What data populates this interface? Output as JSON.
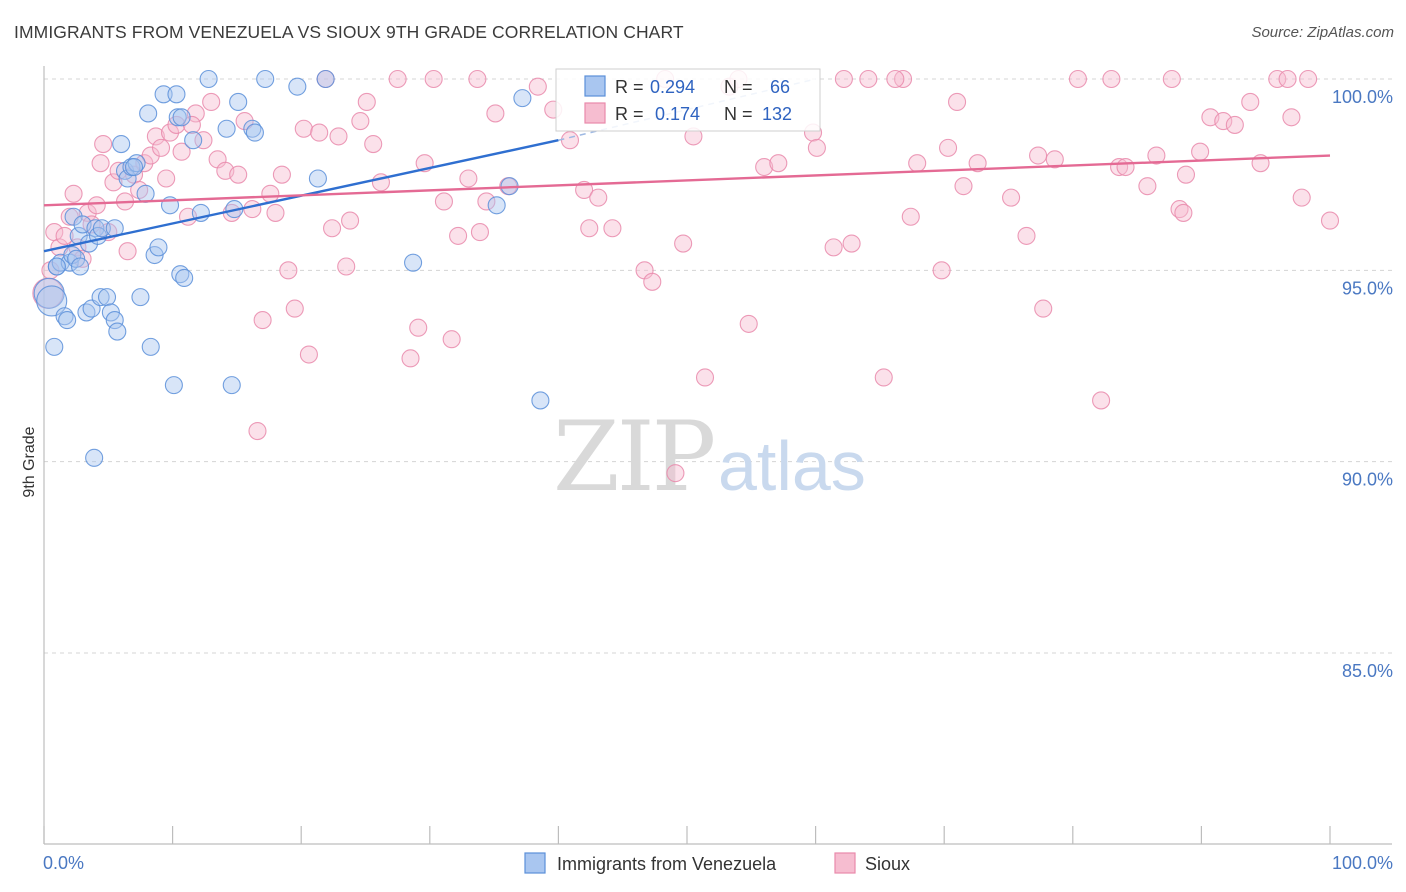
{
  "title": "IMMIGRANTS FROM VENEZUELA VS SIOUX 9TH GRADE CORRELATION CHART",
  "source": "Source: ZipAtlas.com",
  "watermark": {
    "zip": "ZIP",
    "atlas": "atlas"
  },
  "colors": {
    "blue_fill": "#a9c6f0",
    "blue_stroke": "#5b8fd9",
    "blue_line": "#2f6fd0",
    "pink_fill": "#f6bdd0",
    "pink_stroke": "#e98aab",
    "pink_line": "#e46a94",
    "grid": "#d4d4d4"
  },
  "legend": {
    "blue": {
      "r_label": "R =",
      "r_value": "0.294",
      "n_label": "N =",
      "n_value": "66"
    },
    "pink": {
      "r_label": "R =",
      "r_value": "0.174",
      "n_label": "N =",
      "n_value": "132"
    }
  },
  "chart_data": {
    "type": "scatter",
    "title": "IMMIGRANTS FROM VENEZUELA VS SIOUX 9TH GRADE CORRELATION CHART",
    "xlabel": "",
    "ylabel": "9th Grade",
    "xlim": [
      0,
      100
    ],
    "ylim": [
      80,
      100.8
    ],
    "x_tick_labels": [
      {
        "value": 0,
        "label": "0.0%"
      },
      {
        "value": 100,
        "label": "100.0%"
      }
    ],
    "y_tick_labels": [
      {
        "value": 100,
        "label": "100.0%"
      },
      {
        "value": 95,
        "label": "95.0%"
      },
      {
        "value": 90,
        "label": "90.0%"
      },
      {
        "value": 85,
        "label": "85.0%"
      }
    ],
    "grid": true,
    "legend_position": "bottom",
    "series": [
      {
        "name": "Immigrants from Venezuela",
        "color": "blue",
        "trend": {
          "x": [
            0,
            40
          ],
          "y": [
            95.5,
            98.4
          ]
        },
        "trend_dashed": {
          "x": [
            40,
            60
          ],
          "y": [
            98.4,
            100.0
          ]
        },
        "points": [
          [
            0.4,
            94.4
          ],
          [
            0.6,
            94.2
          ],
          [
            0.8,
            93.0
          ],
          [
            1.0,
            95.1
          ],
          [
            1.3,
            95.2
          ],
          [
            1.6,
            93.8
          ],
          [
            1.8,
            93.7
          ],
          [
            2.0,
            95.2
          ],
          [
            2.2,
            95.4
          ],
          [
            2.3,
            96.4
          ],
          [
            2.5,
            95.3
          ],
          [
            2.7,
            95.9
          ],
          [
            2.8,
            95.1
          ],
          [
            3.0,
            96.2
          ],
          [
            3.3,
            93.9
          ],
          [
            3.5,
            95.7
          ],
          [
            3.7,
            94.0
          ],
          [
            4.0,
            96.1
          ],
          [
            4.2,
            95.9
          ],
          [
            4.5,
            96.1
          ],
          [
            4.4,
            94.3
          ],
          [
            4.9,
            94.3
          ],
          [
            5.2,
            93.9
          ],
          [
            5.5,
            93.7
          ],
          [
            5.7,
            93.4
          ],
          [
            6.0,
            98.3
          ],
          [
            6.3,
            97.6
          ],
          [
            6.5,
            97.4
          ],
          [
            6.8,
            97.7
          ],
          [
            7.2,
            97.8
          ],
          [
            7.5,
            94.3
          ],
          [
            7.9,
            97.0
          ],
          [
            8.1,
            99.1
          ],
          [
            8.3,
            93.0
          ],
          [
            8.6,
            95.4
          ],
          [
            8.9,
            95.6
          ],
          [
            9.3,
            99.6
          ],
          [
            9.8,
            96.7
          ],
          [
            10.1,
            92.0
          ],
          [
            10.3,
            99.6
          ],
          [
            10.6,
            94.9
          ],
          [
            10.9,
            94.8
          ],
          [
            10.4,
            99.0
          ],
          [
            11.6,
            98.4
          ],
          [
            12.8,
            100.0
          ],
          [
            14.2,
            98.7
          ],
          [
            14.6,
            92.0
          ],
          [
            15.1,
            99.4
          ],
          [
            16.2,
            98.7
          ],
          [
            17.2,
            100.0
          ],
          [
            19.7,
            99.8
          ],
          [
            21.3,
            97.4
          ],
          [
            21.9,
            100.0
          ],
          [
            28.7,
            95.2
          ],
          [
            35.2,
            96.7
          ],
          [
            36.2,
            97.2
          ],
          [
            37.2,
            99.5
          ],
          [
            38.6,
            91.6
          ],
          [
            1.0,
            95.1
          ],
          [
            3.9,
            90.1
          ],
          [
            12.2,
            96.5
          ],
          [
            7.0,
            97.7
          ],
          [
            10.7,
            99.0
          ],
          [
            5.5,
            96.1
          ],
          [
            16.4,
            98.6
          ],
          [
            14.8,
            96.6
          ]
        ]
      },
      {
        "name": "Sioux",
        "color": "pink",
        "trend": {
          "x": [
            0,
            100
          ],
          "y": [
            96.7,
            98.0
          ]
        },
        "points": [
          [
            0.3,
            94.4
          ],
          [
            0.5,
            95.0
          ],
          [
            0.8,
            96.0
          ],
          [
            1.2,
            95.6
          ],
          [
            1.6,
            95.9
          ],
          [
            2.0,
            96.4
          ],
          [
            2.3,
            97.0
          ],
          [
            2.6,
            95.6
          ],
          [
            3.0,
            95.3
          ],
          [
            3.4,
            96.5
          ],
          [
            3.7,
            96.2
          ],
          [
            4.1,
            96.7
          ],
          [
            4.4,
            97.8
          ],
          [
            4.6,
            98.3
          ],
          [
            5.0,
            96.0
          ],
          [
            5.4,
            97.3
          ],
          [
            5.8,
            97.6
          ],
          [
            6.3,
            96.8
          ],
          [
            6.5,
            95.5
          ],
          [
            7.0,
            97.5
          ],
          [
            7.4,
            97.1
          ],
          [
            7.8,
            97.8
          ],
          [
            8.3,
            98.0
          ],
          [
            8.7,
            98.5
          ],
          [
            9.1,
            98.2
          ],
          [
            9.5,
            97.4
          ],
          [
            9.8,
            98.6
          ],
          [
            10.3,
            98.8
          ],
          [
            10.7,
            98.1
          ],
          [
            11.2,
            96.4
          ],
          [
            11.8,
            99.1
          ],
          [
            12.4,
            98.4
          ],
          [
            13.0,
            99.4
          ],
          [
            13.5,
            97.9
          ],
          [
            14.1,
            97.6
          ],
          [
            14.6,
            96.5
          ],
          [
            15.1,
            97.5
          ],
          [
            15.6,
            98.9
          ],
          [
            16.2,
            96.6
          ],
          [
            16.6,
            90.8
          ],
          [
            17.0,
            93.7
          ],
          [
            17.6,
            97.0
          ],
          [
            18.0,
            96.5
          ],
          [
            18.5,
            97.5
          ],
          [
            19.0,
            95.0
          ],
          [
            19.5,
            94.0
          ],
          [
            20.2,
            98.7
          ],
          [
            20.6,
            92.8
          ],
          [
            21.4,
            98.6
          ],
          [
            21.9,
            100.0
          ],
          [
            22.4,
            96.1
          ],
          [
            22.9,
            98.5
          ],
          [
            23.5,
            95.1
          ],
          [
            23.8,
            96.3
          ],
          [
            24.6,
            98.9
          ],
          [
            25.1,
            99.4
          ],
          [
            25.6,
            98.3
          ],
          [
            26.2,
            97.3
          ],
          [
            27.5,
            100.0
          ],
          [
            28.5,
            92.7
          ],
          [
            29.1,
            93.5
          ],
          [
            29.6,
            97.8
          ],
          [
            30.3,
            100.0
          ],
          [
            31.1,
            96.8
          ],
          [
            31.7,
            93.2
          ],
          [
            32.2,
            95.9
          ],
          [
            33.0,
            97.4
          ],
          [
            33.7,
            100.0
          ],
          [
            34.4,
            96.8
          ],
          [
            35.1,
            99.1
          ],
          [
            36.1,
            97.2
          ],
          [
            38.4,
            99.8
          ],
          [
            39.6,
            99.2
          ],
          [
            40.9,
            98.4
          ],
          [
            42.0,
            97.1
          ],
          [
            43.1,
            96.9
          ],
          [
            44.2,
            96.1
          ],
          [
            46.7,
            95.0
          ],
          [
            47.3,
            94.7
          ],
          [
            48.3,
            100.0
          ],
          [
            49.1,
            89.7
          ],
          [
            49.7,
            95.7
          ],
          [
            50.5,
            98.5
          ],
          [
            51.4,
            92.2
          ],
          [
            53.3,
            99.8
          ],
          [
            54.0,
            100.0
          ],
          [
            54.8,
            93.6
          ],
          [
            56.0,
            97.7
          ],
          [
            57.1,
            97.8
          ],
          [
            59.8,
            98.6
          ],
          [
            61.4,
            95.6
          ],
          [
            62.2,
            100.0
          ],
          [
            62.8,
            95.7
          ],
          [
            64.1,
            100.0
          ],
          [
            65.3,
            92.2
          ],
          [
            66.8,
            100.0
          ],
          [
            67.4,
            96.4
          ],
          [
            67.9,
            97.8
          ],
          [
            69.8,
            95.0
          ],
          [
            70.3,
            98.2
          ],
          [
            71.0,
            99.4
          ],
          [
            71.5,
            97.2
          ],
          [
            72.6,
            97.8
          ],
          [
            75.2,
            96.9
          ],
          [
            76.4,
            95.9
          ],
          [
            77.3,
            98.0
          ],
          [
            77.7,
            94.0
          ],
          [
            78.6,
            97.9
          ],
          [
            80.4,
            100.0
          ],
          [
            82.2,
            91.6
          ],
          [
            83.0,
            100.0
          ],
          [
            83.6,
            97.7
          ],
          [
            84.1,
            97.7
          ],
          [
            85.8,
            97.2
          ],
          [
            86.5,
            98.0
          ],
          [
            87.7,
            100.0
          ],
          [
            88.3,
            96.6
          ],
          [
            88.6,
            96.5
          ],
          [
            88.8,
            97.5
          ],
          [
            89.9,
            98.1
          ],
          [
            90.7,
            99.0
          ],
          [
            91.7,
            98.9
          ],
          [
            92.6,
            98.8
          ],
          [
            93.8,
            99.4
          ],
          [
            94.6,
            97.8
          ],
          [
            95.9,
            100.0
          ],
          [
            96.7,
            100.0
          ],
          [
            97.0,
            99.0
          ],
          [
            97.8,
            96.9
          ],
          [
            98.3,
            100.0
          ],
          [
            100.0,
            96.3
          ],
          [
            11.5,
            98.8
          ],
          [
            33.9,
            96.0
          ],
          [
            42.4,
            96.1
          ],
          [
            60.1,
            98.2
          ],
          [
            66.2,
            100.0
          ]
        ]
      }
    ]
  },
  "bottom_legend": {
    "blue_label": "Immigrants from Venezuela",
    "pink_label": "Sioux"
  }
}
